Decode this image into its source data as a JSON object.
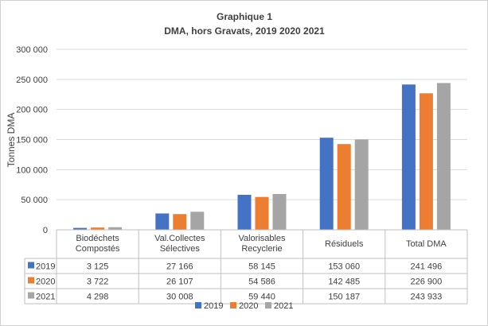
{
  "chart_data": {
    "type": "bar",
    "title": "Graphique 1",
    "subtitle": "DMA, hors Gravats, 2019 2020 2021",
    "ylabel": "Tonnes DMA",
    "xlabel": "",
    "ylim": [
      0,
      300000
    ],
    "yticks": [
      0,
      50000,
      100000,
      150000,
      200000,
      250000,
      300000
    ],
    "ytick_labels": [
      "0",
      "50 000",
      "100 000",
      "150 000",
      "200 000",
      "250 000",
      "300 000"
    ],
    "categories": [
      [
        "Biodéchets",
        "Compostés"
      ],
      [
        "Val.Collectes",
        "Sélectives"
      ],
      [
        "Valorisables",
        "Recyclerie"
      ],
      [
        "Résiduels"
      ],
      [
        "Total DMA"
      ]
    ],
    "series": [
      {
        "name": "2019",
        "color": "#4472C4",
        "values": [
          3125,
          27166,
          58145,
          153060,
          241496
        ],
        "labels": [
          "3 125",
          "27 166",
          "58 145",
          "153 060",
          "241 496"
        ]
      },
      {
        "name": "2020",
        "color": "#ED7D31",
        "values": [
          3722,
          26107,
          54586,
          142485,
          226900
        ],
        "labels": [
          "3 722",
          "26 107",
          "54 586",
          "142 485",
          "226 900"
        ]
      },
      {
        "name": "2021",
        "color": "#A5A5A5",
        "values": [
          4298,
          30008,
          59440,
          150187,
          243933
        ],
        "labels": [
          "4 298",
          "30 008",
          "59 440",
          "150 187",
          "243 933"
        ]
      }
    ],
    "grid": true,
    "legend": "bottom",
    "data_table": true
  }
}
